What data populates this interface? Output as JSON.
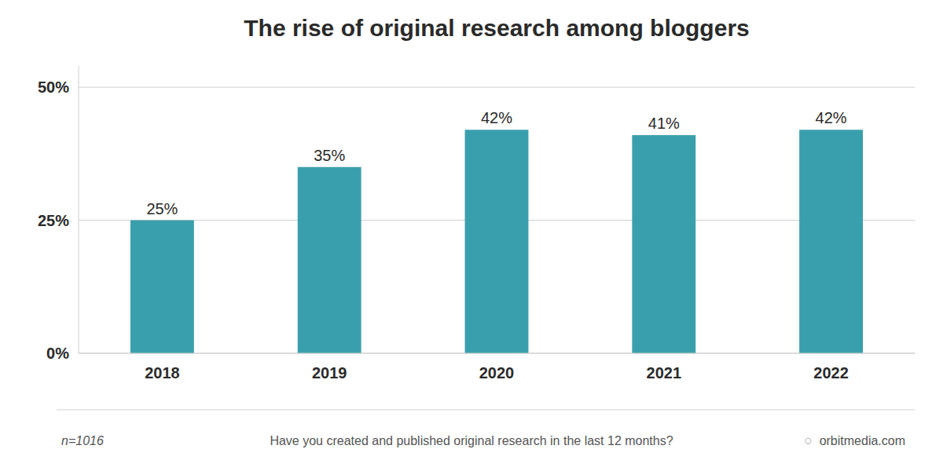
{
  "chart_data": {
    "type": "bar",
    "title": "The rise of original research among bloggers",
    "categories": [
      "2018",
      "2019",
      "2020",
      "2021",
      "2022"
    ],
    "values": [
      25,
      35,
      42,
      41,
      42
    ],
    "value_labels": [
      "25%",
      "35%",
      "42%",
      "41%",
      "42%"
    ],
    "data_labels": true,
    "color": "#3a9fac",
    "ylim": [
      0,
      54
    ],
    "yticks": [
      {
        "value": 0,
        "label": "0%"
      },
      {
        "value": 25,
        "label": "25%"
      },
      {
        "value": 50,
        "label": "50%"
      }
    ],
    "grid": true,
    "annotations": [
      "n=1016",
      "Have you created and published original research in the last 12 months?",
      "○",
      "orbitmedia.com"
    ]
  }
}
